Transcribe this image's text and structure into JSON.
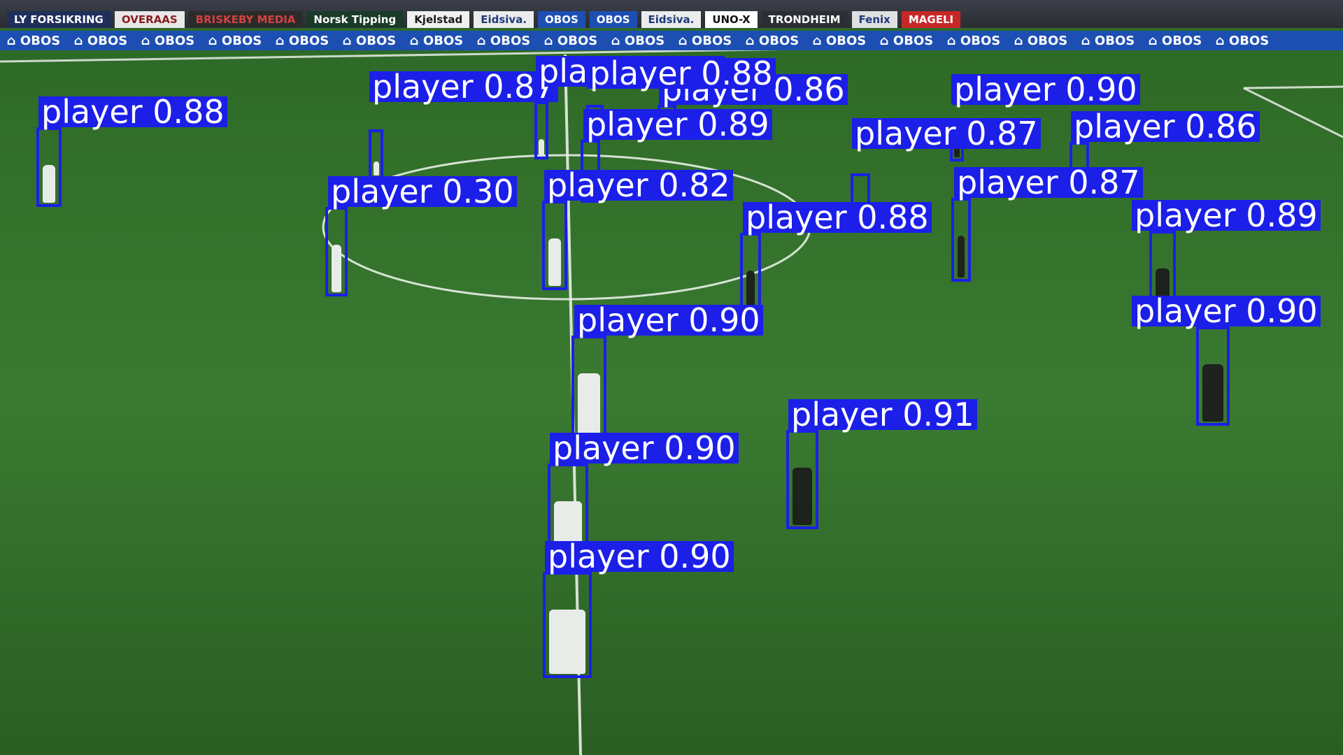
{
  "ad_boards": {
    "top": [
      {
        "text": "LY FORSIKRING",
        "bg": "#1f2e5a",
        "fg": "#ffffff"
      },
      {
        "text": "OVERAAS",
        "bg": "#e8e8e8",
        "fg": "#8a1c1c"
      },
      {
        "text": "BRISKEBY MEDIA",
        "bg": "#2b2b2b",
        "fg": "#d64040"
      },
      {
        "text": "Norsk Tipping",
        "bg": "#1a3a2a",
        "fg": "#ffffff"
      },
      {
        "text": "Kjelstad",
        "bg": "#f0f0f0",
        "fg": "#1a1a1a"
      },
      {
        "text": "Eidsiva.",
        "bg": "#ececec",
        "fg": "#1e3a7a"
      },
      {
        "text": "OBOS",
        "bg": "#1d4fb3",
        "fg": "#ffffff"
      },
      {
        "text": "OBOS",
        "bg": "#1d4fb3",
        "fg": "#ffffff"
      },
      {
        "text": "Eidsiva.",
        "bg": "#ececec",
        "fg": "#1e3a7a"
      },
      {
        "text": "UNO-X",
        "bg": "#ffffff",
        "fg": "#111111"
      },
      {
        "text": "TRONDHEIM",
        "bg": "#2b2e34",
        "fg": "#ffffff"
      },
      {
        "text": "Fenix",
        "bg": "#e0e0e0",
        "fg": "#1e3a7a"
      },
      {
        "text": "MAGELI",
        "bg": "#c62828",
        "fg": "#ffffff"
      }
    ],
    "bottom_label": "OBOS",
    "bottom_count": 19
  },
  "detections": [
    {
      "label": "player 0.88",
      "player_color": "#e8ece8"
    },
    {
      "label": "player 0.87",
      "player_color": "#e8ece8"
    },
    {
      "label": "player 0.82",
      "player_color": "#e8ece8"
    },
    {
      "label": "player 0.86",
      "player_color": "#1e221c"
    },
    {
      "label": "player 0.88",
      "player_color": "#1e221c"
    },
    {
      "label": "player 0.90",
      "player_color": "#1e221c"
    },
    {
      "label": "player 0.89",
      "player_color": "#e8ece8"
    },
    {
      "label": "player 0.87",
      "player_color": "#1e221c"
    },
    {
      "label": "player 0.86",
      "player_color": "#1e221c"
    },
    {
      "label": "player 0.30",
      "player_color": "#e8ece8"
    },
    {
      "label": "player 0.82",
      "player_color": "#e8ece8"
    },
    {
      "label": "player 0.87",
      "player_color": "#1e221c"
    },
    {
      "label": "player 0.88",
      "player_color": "#1e221c"
    },
    {
      "label": "player 0.89",
      "player_color": "#1e221c"
    },
    {
      "label": "player 0.90",
      "player_color": "#e8ece8"
    },
    {
      "label": "player 0.90",
      "player_color": "#1e221c"
    },
    {
      "label": "player 0.91",
      "player_color": "#1e221c"
    },
    {
      "label": "player 0.90",
      "player_color": "#e8ece8"
    },
    {
      "label": "player 0.90",
      "player_color": "#e8ece8"
    }
  ],
  "colors": {
    "box": "#1b1fe8",
    "pitch_light": "#3c7a30",
    "pitch_dark": "#2b5f24",
    "lines": "#e8efe6"
  }
}
